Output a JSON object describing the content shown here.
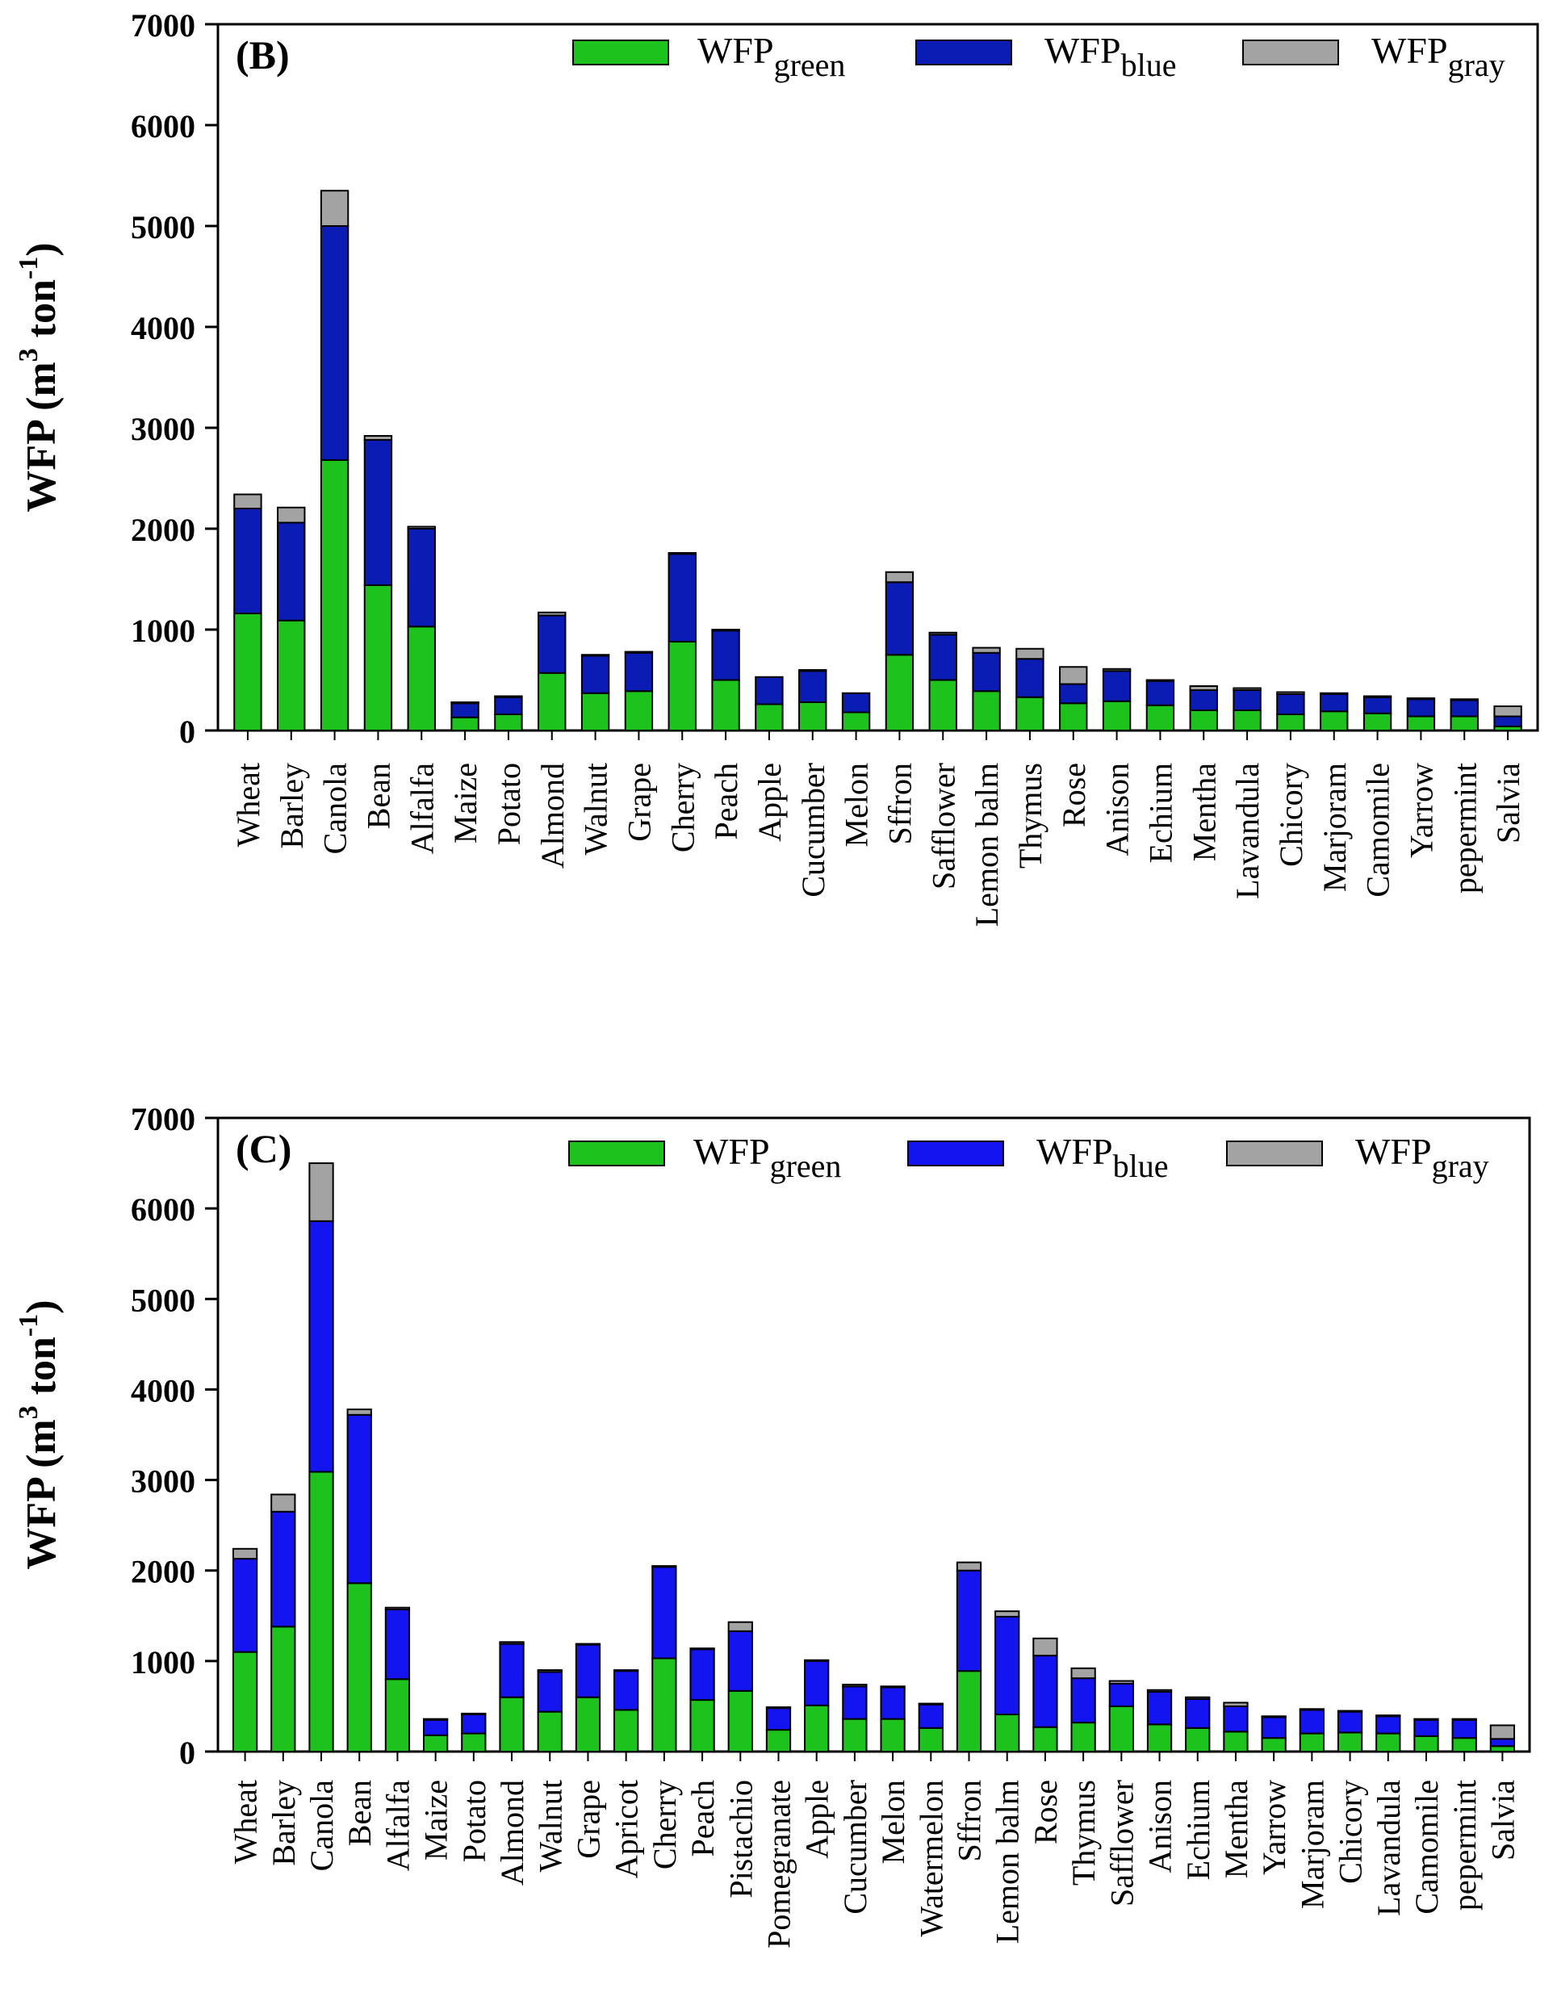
{
  "chart_data": [
    {
      "type": "bar",
      "stacked": true,
      "panel_label": "(B)",
      "ylabel": "WFP (m3 ton-1)",
      "ylabel_parts": {
        "base": "WFP (m",
        "sup1": "3",
        "mid": " ton",
        "sup2": "-1",
        "end": ")"
      },
      "ylim": [
        0,
        7000
      ],
      "yticks": [
        0,
        1000,
        2000,
        3000,
        4000,
        5000,
        6000,
        7000
      ],
      "legend_position": "top-right",
      "categories": [
        "Wheat",
        "Barley",
        "Canola",
        "Bean",
        "Alfalfa",
        "Maize",
        "Potato",
        "Almond",
        "Walnut",
        "Grape",
        "Cherry",
        "Peach",
        "Apple",
        "Cucumber",
        "Melon",
        "Sffron",
        "Safflower",
        "Lemon balm",
        "Thymus",
        "Rose",
        "Anison",
        "Echium",
        "Mentha",
        "Lavandula",
        "Chicory",
        "Marjoram",
        "Camomile",
        "Yarrow",
        "pepermint",
        "Salvia"
      ],
      "series": [
        {
          "name": "WFPgreen",
          "label_base": "WFP",
          "label_sub": "green",
          "color": "#1dc21d",
          "values": [
            1160,
            1090,
            2680,
            1440,
            1030,
            130,
            160,
            570,
            370,
            390,
            880,
            500,
            260,
            280,
            180,
            750,
            500,
            390,
            330,
            270,
            290,
            250,
            200,
            200,
            160,
            190,
            170,
            140,
            140,
            40
          ]
        },
        {
          "name": "WFPblue",
          "label_base": "WFP",
          "label_sub": "blue",
          "color": "#0a1cb4",
          "values": [
            1040,
            970,
            2320,
            1440,
            970,
            140,
            170,
            570,
            370,
            380,
            870,
            490,
            270,
            310,
            190,
            720,
            450,
            380,
            380,
            190,
            300,
            240,
            200,
            200,
            200,
            170,
            160,
            170,
            160,
            100
          ]
        },
        {
          "name": "WFPgray",
          "label_base": "WFP",
          "label_sub": "gray",
          "color": "#a3a3a3",
          "values": [
            140,
            150,
            350,
            40,
            20,
            10,
            10,
            30,
            10,
            10,
            10,
            10,
            0,
            10,
            0,
            100,
            20,
            50,
            100,
            170,
            20,
            10,
            40,
            20,
            20,
            10,
            10,
            10,
            10,
            100
          ]
        }
      ]
    },
    {
      "type": "bar",
      "stacked": true,
      "panel_label": "(C)",
      "ylabel": "WFP (m3 ton-1)",
      "ylabel_parts": {
        "base": "WFP (m",
        "sup1": "3",
        "mid": " ton",
        "sup2": "-1",
        "end": ")"
      },
      "ylim": [
        0,
        7000
      ],
      "yticks": [
        0,
        1000,
        2000,
        3000,
        4000,
        5000,
        6000,
        7000
      ],
      "legend_position": "top-right",
      "categories": [
        "Wheat",
        "Barley",
        "Canola",
        "Bean",
        "Alfalfa",
        "Maize",
        "Potato",
        "Almond",
        "Walnut",
        "Grape",
        "Apricot",
        "Cherry",
        "Peach",
        "Pistachio",
        "Pomegranate",
        "Apple",
        "Cucumber",
        "Melon",
        "Watermelon",
        "Sffron",
        "Lemon balm",
        "Rose",
        "Thymus",
        "Safflower",
        "Anison",
        "Echium",
        "Mentha",
        "Yarrow",
        "Marjoram",
        "Chicory",
        "Lavandula",
        "Camomile",
        "pepermint",
        "Salvia"
      ],
      "series": [
        {
          "name": "WFPgreen",
          "label_base": "WFP",
          "label_sub": "green",
          "color": "#1dc21d",
          "values": [
            1100,
            1380,
            3090,
            1860,
            800,
            180,
            200,
            600,
            440,
            600,
            460,
            1030,
            570,
            670,
            240,
            510,
            360,
            360,
            260,
            890,
            410,
            270,
            320,
            500,
            300,
            260,
            220,
            150,
            200,
            210,
            200,
            170,
            150,
            60
          ]
        },
        {
          "name": "WFPblue",
          "label_base": "WFP",
          "label_sub": "blue",
          "color": "#1414f0",
          "values": [
            1030,
            1270,
            2770,
            1860,
            770,
            170,
            210,
            590,
            440,
            580,
            430,
            1010,
            560,
            660,
            240,
            490,
            360,
            350,
            260,
            1110,
            1080,
            790,
            490,
            250,
            360,
            320,
            280,
            230,
            260,
            230,
            190,
            180,
            200,
            80
          ]
        },
        {
          "name": "WFPgray",
          "label_base": "WFP",
          "label_sub": "gray",
          "color": "#a3a3a3",
          "values": [
            110,
            190,
            640,
            60,
            20,
            10,
            10,
            20,
            20,
            10,
            10,
            10,
            10,
            100,
            10,
            10,
            20,
            10,
            10,
            90,
            60,
            190,
            110,
            30,
            20,
            20,
            40,
            10,
            10,
            10,
            10,
            10,
            10,
            150
          ]
        }
      ]
    }
  ]
}
